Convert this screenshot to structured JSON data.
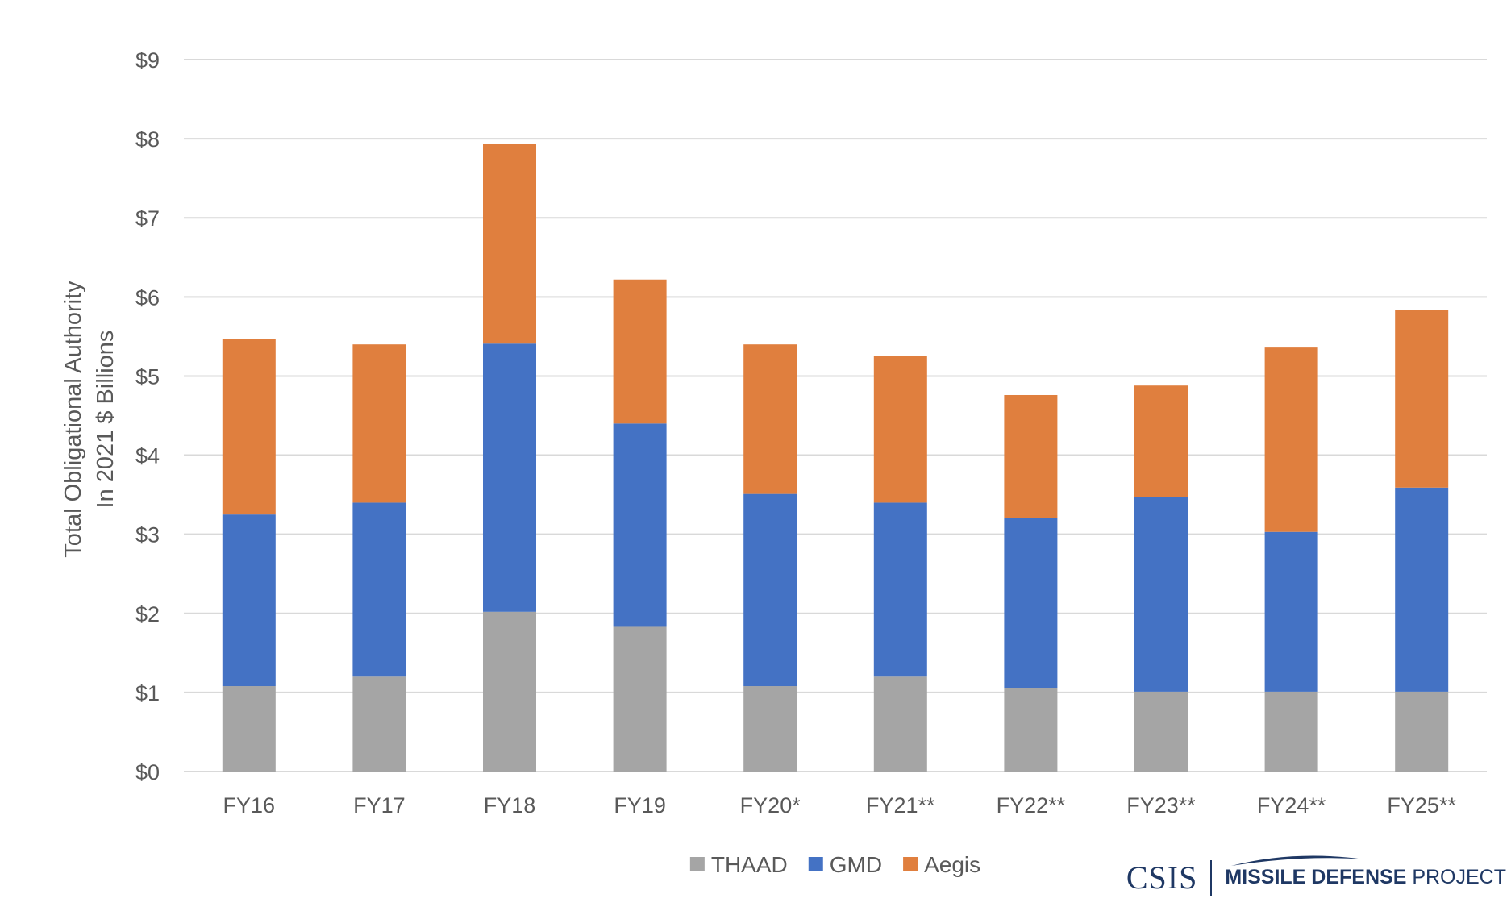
{
  "chart_data": {
    "type": "bar",
    "stacked": true,
    "categories": [
      "FY16",
      "FY17",
      "FY18",
      "FY19",
      "FY20*",
      "FY21**",
      "FY22**",
      "FY23**",
      "FY24**",
      "FY25**"
    ],
    "series": [
      {
        "name": "THAAD",
        "color": "#a5a5a5",
        "values": [
          1.08,
          1.2,
          2.02,
          1.83,
          1.08,
          1.2,
          1.05,
          1.01,
          1.01,
          1.01
        ]
      },
      {
        "name": "GMD",
        "color": "#4472c4",
        "values": [
          2.17,
          2.2,
          3.39,
          2.57,
          2.43,
          2.2,
          2.16,
          2.46,
          2.02,
          2.58
        ]
      },
      {
        "name": "Aegis",
        "color": "#e07f3e",
        "values": [
          2.22,
          2.0,
          2.53,
          1.82,
          1.89,
          1.85,
          1.55,
          1.41,
          2.33,
          2.25
        ]
      }
    ],
    "ylim": [
      0,
      9
    ],
    "yticks": [
      "$0",
      "$1",
      "$2",
      "$3",
      "$4",
      "$5",
      "$6",
      "$7",
      "$8",
      "$9"
    ],
    "ylabel_line1": "Total Obligational Authority",
    "ylabel_line2": "In 2021 $ Billions",
    "grid": true,
    "legend_position": "bottom"
  },
  "logo": {
    "org": "CSIS",
    "project_bold": "MISSILE DEFENSE",
    "project_rest": " PROJECT"
  }
}
